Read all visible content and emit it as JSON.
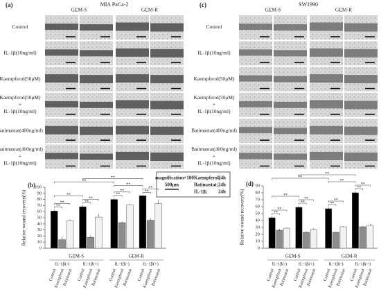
{
  "panels": [
    {
      "label": "(a)",
      "title": "MIA PaCa-2",
      "columns": [
        "GEM-S",
        "GEM-R"
      ],
      "rows": [
        [
          "Control"
        ],
        [
          "IL-1β(10ng/ml)"
        ],
        [
          "Kaempferol(50μM)"
        ],
        [
          "Kaempferol(50μM)",
          "+",
          "IL-1β(10ng/ml)"
        ],
        [
          "Batimastat(400ng/ml)"
        ],
        [
          "Batimastat(400ng/ml)",
          "+",
          "IL-1β(10ng/ml)"
        ]
      ]
    },
    {
      "label": "(c)",
      "title": "SW1990",
      "columns": [
        "GEM-S",
        "GEM-R"
      ],
      "rows": [
        [
          "Control"
        ],
        [
          "IL-1β(10ng/ml)"
        ],
        [
          "Kaempferol(50μM)"
        ],
        [
          "Kaempferol(50μM)",
          "+",
          "IL-1β(10ng/ml)"
        ],
        [
          "Batimastat(400ng/ml)"
        ],
        [
          "Batimastat(400ng/ml)",
          "+",
          "IL-1β(10ng/ml)"
        ]
      ]
    }
  ],
  "scale_box": {
    "magnification": "magnification×100",
    "scale": "500μm",
    "lines": [
      [
        "Kaempferol;",
        "24h"
      ],
      [
        "Batimastat;",
        "24h"
      ],
      [
        "IL-1β;",
        "24h"
      ]
    ]
  },
  "chart_data": [
    {
      "type": "bar",
      "label": "(b)",
      "y_label": "Relative wound recovery(%)",
      "ylim": [
        0,
        100
      ],
      "yticks": [
        0,
        10,
        20,
        30,
        40,
        50,
        60,
        70,
        80,
        90,
        100
      ],
      "supergroups": [
        "GEM-S",
        "GEM-R"
      ],
      "categories": [
        "IL-1β(-)",
        "IL-1β(+)",
        "IL-1β(-)",
        "IL-1β(+)"
      ],
      "series": [
        {
          "name": "Control",
          "color": "#000000",
          "values": [
            61,
            68,
            80,
            86
          ],
          "errors": [
            2,
            2,
            2,
            1
          ]
        },
        {
          "name": "Kaempferol",
          "color": "#8c8c8c",
          "values": [
            14,
            18,
            42,
            46
          ],
          "errors": [
            5,
            3,
            2,
            3
          ]
        },
        {
          "name": "Batimastat",
          "color": "#f2f2f2",
          "values": [
            45,
            51,
            71,
            73
          ],
          "errors": [
            2,
            5,
            2,
            6
          ]
        }
      ],
      "brackets": [
        {
          "from": 0,
          "to": 1,
          "text": "**"
        },
        {
          "from": 0,
          "to": 2,
          "text": "**"
        },
        {
          "from": 3,
          "to": 4,
          "text": "**"
        },
        {
          "from": 3,
          "to": 5,
          "text": "**"
        },
        {
          "from": 0,
          "to": 3,
          "text": "**"
        },
        {
          "from": 6,
          "to": 7,
          "text": "**"
        },
        {
          "from": 6,
          "to": 8,
          "text": "**"
        },
        {
          "from": 9,
          "to": 10,
          "text": "**"
        },
        {
          "from": 9,
          "to": 11,
          "text": "**"
        },
        {
          "from": 6,
          "to": 9,
          "text": "**"
        },
        {
          "from": 0,
          "to": 6,
          "text": "**"
        },
        {
          "from": 3,
          "to": 9,
          "text": "**"
        }
      ]
    },
    {
      "type": "bar",
      "label": "(d)",
      "y_label": "Relative wound recovery(%)",
      "ylim": [
        0,
        90
      ],
      "yticks": [
        0,
        10,
        20,
        30,
        40,
        50,
        60,
        70,
        80,
        90
      ],
      "supergroups": [
        "GEM-S",
        "GEM-R"
      ],
      "categories": [
        "IL-1β(-)",
        "IL-1β(+)",
        "IL-1β(-)",
        "IL-1β(+)"
      ],
      "series": [
        {
          "name": "Control",
          "color": "#000000",
          "values": [
            44,
            59,
            57,
            80
          ],
          "errors": [
            2,
            2,
            2,
            2
          ]
        },
        {
          "name": "Kaempferol",
          "color": "#8c8c8c",
          "values": [
            26,
            23,
            23,
            31
          ],
          "errors": [
            2,
            1,
            1,
            1
          ]
        },
        {
          "name": "Batimastat",
          "color": "#f2f2f2",
          "values": [
            29,
            27,
            31,
            33
          ],
          "errors": [
            1,
            2,
            1,
            2
          ]
        }
      ],
      "brackets": [
        {
          "from": 0,
          "to": 1,
          "text": "**"
        },
        {
          "from": 0,
          "to": 2,
          "text": "**"
        },
        {
          "from": 3,
          "to": 4,
          "text": "**"
        },
        {
          "from": 3,
          "to": 5,
          "text": "**"
        },
        {
          "from": 0,
          "to": 3,
          "text": "**"
        },
        {
          "from": 6,
          "to": 7,
          "text": "**"
        },
        {
          "from": 6,
          "to": 8,
          "text": "**"
        },
        {
          "from": 9,
          "to": 10,
          "text": "**"
        },
        {
          "from": 9,
          "to": 11,
          "text": "**"
        },
        {
          "from": 6,
          "to": 9,
          "text": "**"
        },
        {
          "from": 0,
          "to": 6,
          "text": "**"
        },
        {
          "from": 3,
          "to": 9,
          "text": "**"
        }
      ]
    }
  ]
}
